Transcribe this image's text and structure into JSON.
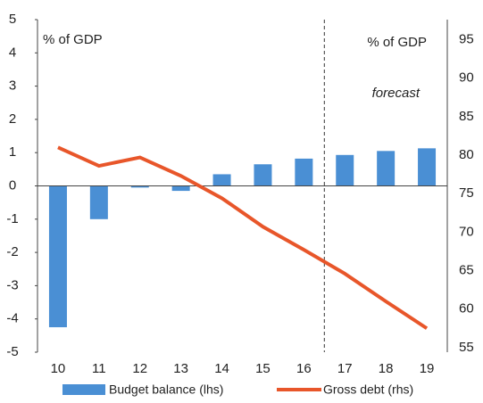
{
  "chart_data": {
    "type": "bar_line",
    "categories": [
      "10",
      "11",
      "12",
      "13",
      "14",
      "15",
      "16",
      "17",
      "18",
      "19"
    ],
    "series": [
      {
        "name": "Budget balance (lhs)",
        "color": "#4a8fd4",
        "type": "bar",
        "axis": "y",
        "values": [
          -4.25,
          -1.0,
          -0.05,
          -0.15,
          0.35,
          0.65,
          0.82,
          0.93,
          1.05,
          1.13
        ]
      },
      {
        "name": "Gross debt (rhs)",
        "color": "#e8562a",
        "type": "line",
        "axis": "y2",
        "values": [
          81.0,
          78.6,
          79.7,
          77.3,
          74.4,
          70.7,
          67.7,
          64.6,
          61.0,
          57.5
        ]
      }
    ],
    "ylim": [
      -5,
      5
    ],
    "yticks": [
      -5,
      -4,
      -3,
      -2,
      -1,
      0,
      1,
      2,
      3,
      4,
      5
    ],
    "y2lim": [
      54.4,
      97.6
    ],
    "y2ticks": [
      55,
      60,
      65,
      70,
      75,
      80,
      85,
      90,
      95
    ],
    "annotations": [
      "% of GDP",
      "% of GDP",
      "forecast"
    ]
  }
}
